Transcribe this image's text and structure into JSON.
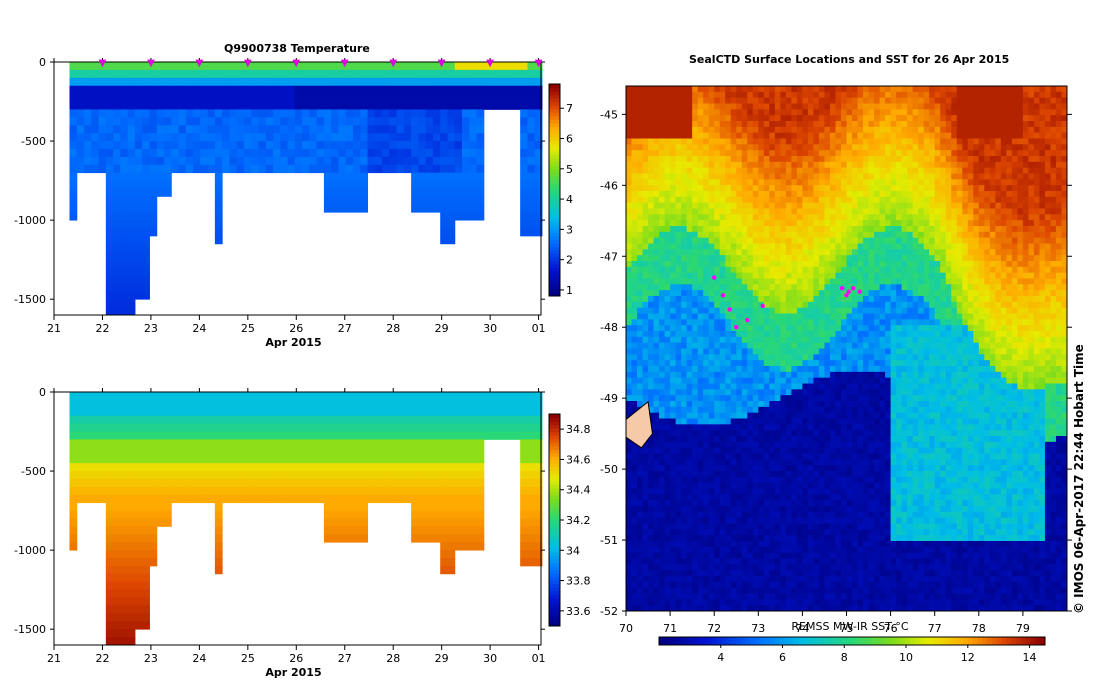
{
  "credit": "© IMOS 06-Apr-2017 22:44 Hobart Time",
  "chart_data": [
    {
      "type": "heatmap",
      "title": "Q9900738  Temperature",
      "xlabel": "Apr 2015",
      "ylabel": "",
      "x_ticks": [
        "21",
        "22",
        "23",
        "24",
        "25",
        "26",
        "27",
        "28",
        "29",
        "30",
        "01"
      ],
      "y_ticks": [
        "0",
        "-500",
        "-1000",
        "-1500"
      ],
      "xlim": [
        21.0,
        31.05
      ],
      "ylim": [
        -1600,
        0
      ],
      "colorbar": {
        "ticks": [
          "1",
          "2",
          "3",
          "4",
          "5",
          "6",
          "7"
        ],
        "range": [
          0.8,
          7.8
        ]
      },
      "profile_times": [
        21.4,
        21.55,
        21.7,
        21.85,
        22.0,
        22.15,
        22.3,
        22.45,
        22.6,
        22.75,
        22.9,
        23.05,
        23.2,
        23.35,
        23.5,
        23.65,
        23.8,
        23.95,
        24.1,
        24.25,
        24.4,
        24.55,
        24.7,
        24.85,
        25.0,
        25.15,
        25.3,
        25.45,
        25.6,
        25.75,
        25.9,
        26.05,
        26.2,
        26.35,
        26.5,
        26.65,
        26.8,
        26.95,
        27.1,
        27.25,
        27.4,
        27.55,
        27.7,
        27.85,
        28.0,
        28.15,
        28.3,
        28.45,
        28.6,
        28.75,
        28.9,
        29.05,
        29.2,
        29.35,
        29.5,
        29.65,
        29.8,
        29.95,
        30.1,
        30.25,
        30.4,
        30.55,
        30.7,
        30.85,
        31.0
      ],
      "profile_max_depth": [
        1000,
        700,
        700,
        700,
        700,
        1600,
        1600,
        1600,
        1600,
        1500,
        1500,
        1100,
        850,
        850,
        700,
        700,
        700,
        700,
        700,
        700,
        1130,
        700,
        700,
        700,
        700,
        700,
        700,
        700,
        700,
        700,
        700,
        700,
        700,
        700,
        700,
        930,
        930,
        930,
        930,
        930,
        930,
        700,
        700,
        700,
        700,
        700,
        700,
        950,
        950,
        950,
        950,
        1150,
        1150,
        980,
        980,
        980,
        980,
        300,
        300,
        300,
        300,
        300,
        1080,
        1080,
        1080
      ],
      "surface_markers": [
        22,
        23,
        24,
        25,
        26,
        27,
        28,
        29,
        30,
        31
      ]
    },
    {
      "type": "heatmap",
      "title": "",
      "xlabel": "Apr 2015",
      "ylabel": "",
      "x_ticks": [
        "21",
        "22",
        "23",
        "24",
        "25",
        "26",
        "27",
        "28",
        "29",
        "30",
        "01"
      ],
      "y_ticks": [
        "0",
        "-500",
        "-1000",
        "-1500"
      ],
      "xlim": [
        21.0,
        31.05
      ],
      "ylim": [
        -1600,
        0
      ],
      "colorbar": {
        "ticks": [
          "33.6",
          "33.8",
          "34",
          "34.2",
          "34.4",
          "34.6",
          "34.8"
        ],
        "range": [
          33.5,
          34.9
        ]
      }
    },
    {
      "type": "heatmap",
      "title": "SealCTD Surface Locations and SST for 26 Apr 2015",
      "xlabel": "REMSS MW-IR SST °C",
      "x_ticks": [
        "70",
        "71",
        "72",
        "73",
        "74",
        "75",
        "76",
        "77",
        "78",
        "79"
      ],
      "y_ticks": [
        "-45",
        "-46",
        "-47",
        "-48",
        "-49",
        "-50",
        "-51",
        "-52"
      ],
      "xlim": [
        70,
        80
      ],
      "ylim": [
        -52,
        -44.6
      ],
      "colorbar": {
        "ticks": [
          "4",
          "6",
          "8",
          "10",
          "12",
          "14"
        ],
        "range": [
          2,
          14.5
        ]
      },
      "seal_positions": [
        [
          72.0,
          -47.3
        ],
        [
          72.2,
          -47.55
        ],
        [
          72.35,
          -47.75
        ],
        [
          72.5,
          -48.0
        ],
        [
          72.75,
          -47.9
        ],
        [
          73.1,
          -47.7
        ],
        [
          74.9,
          -47.45
        ],
        [
          75.05,
          -47.5
        ],
        [
          75.15,
          -47.45
        ],
        [
          75.3,
          -47.5
        ],
        [
          75.0,
          -47.55
        ]
      ]
    }
  ]
}
